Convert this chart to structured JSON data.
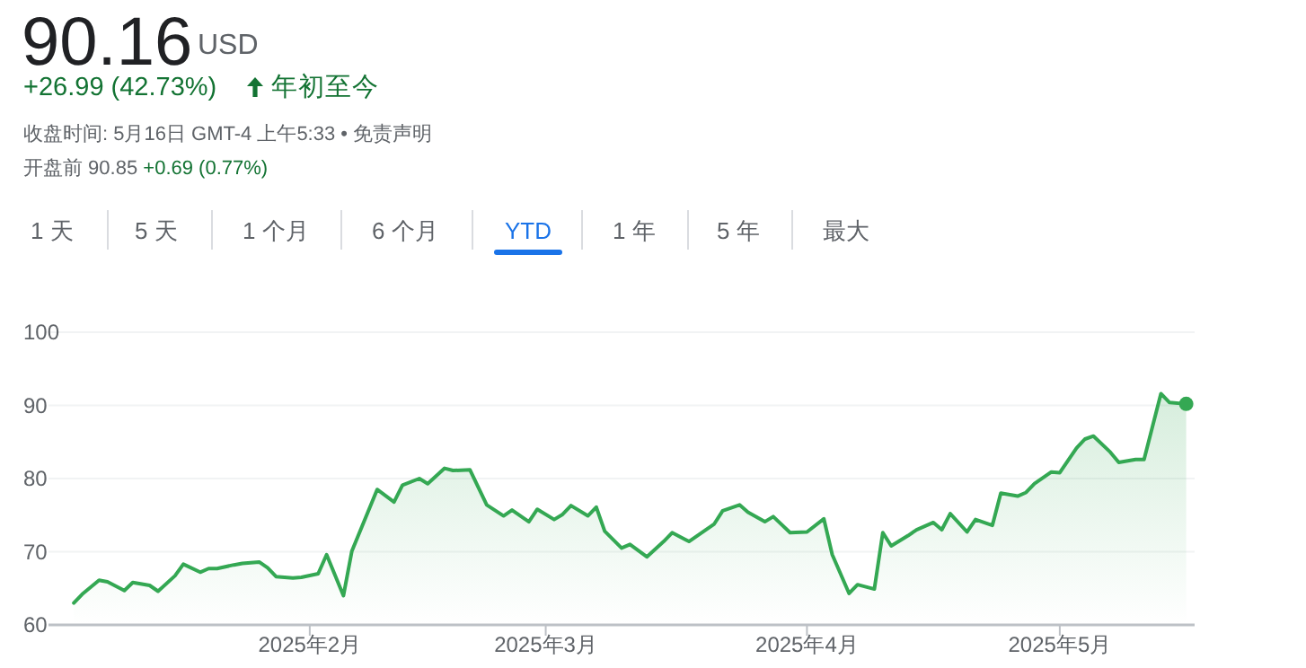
{
  "chart_data": {
    "type": "area",
    "title": "90.16",
    "subtitle": "USD",
    "annotations": [
      "+26.99 (42.73%)",
      "年初至今",
      "收盘时间: 5月16日 GMT-4 上午5:33 • 免责声明",
      "开盘前 90.85",
      "+0.69 (0.77%)",
      "1 天",
      "5 天",
      "1 个月",
      "6 个月",
      "YTD",
      "1 年",
      "5 年",
      "最大"
    ],
    "x": [
      "2025-01-04",
      "2025-01-05",
      "2025-01-07",
      "2025-01-08",
      "2025-01-10",
      "2025-01-11",
      "2025-01-13",
      "2025-01-14",
      "2025-01-16",
      "2025-01-17",
      "2025-01-19",
      "2025-01-20",
      "2025-01-21",
      "2025-01-23",
      "2025-01-24",
      "2025-01-26",
      "2025-01-27",
      "2025-01-28",
      "2025-01-30",
      "2025-01-31",
      "2025-02-02",
      "2025-02-03",
      "2025-02-05",
      "2025-02-06",
      "2025-02-09",
      "2025-02-11",
      "2025-02-12",
      "2025-02-14",
      "2025-02-15",
      "2025-02-17",
      "2025-02-18",
      "2025-02-20",
      "2025-02-22",
      "2025-02-24",
      "2025-02-25",
      "2025-02-27",
      "2025-02-28",
      "2025-03-02",
      "2025-03-03",
      "2025-03-04",
      "2025-03-06",
      "2025-03-07",
      "2025-03-08",
      "2025-03-10",
      "2025-03-11",
      "2025-03-13",
      "2025-03-15",
      "2025-03-16",
      "2025-03-18",
      "2025-03-21",
      "2025-03-22",
      "2025-03-24",
      "2025-03-25",
      "2025-03-27",
      "2025-03-28",
      "2025-03-30",
      "2025-04-01",
      "2025-04-03",
      "2025-04-04",
      "2025-04-06",
      "2025-04-07",
      "2025-04-09",
      "2025-04-10",
      "2025-04-11",
      "2025-04-13",
      "2025-04-14",
      "2025-04-16",
      "2025-04-17",
      "2025-04-18",
      "2025-04-20",
      "2025-04-21",
      "2025-04-23",
      "2025-04-24",
      "2025-04-26",
      "2025-04-27",
      "2025-04-28",
      "2025-04-30",
      "2025-05-01",
      "2025-05-03",
      "2025-05-04",
      "2025-05-05",
      "2025-05-07",
      "2025-05-08",
      "2025-05-10",
      "2025-05-11",
      "2025-05-13",
      "2025-05-14",
      "2025-05-16"
    ],
    "series": [
      {
        "color": "#34a853",
        "values": [
          63.0,
          64.2,
          66.1,
          65.9,
          64.7,
          65.8,
          65.4,
          64.6,
          66.7,
          68.3,
          67.2,
          67.7,
          67.7,
          68.2,
          68.4,
          68.6,
          67.8,
          66.6,
          66.4,
          66.5,
          67.0,
          69.6,
          64.0,
          70.1,
          78.5,
          76.8,
          79.1,
          80.0,
          79.3,
          81.4,
          81.1,
          81.2,
          76.4,
          74.9,
          75.7,
          74.1,
          75.8,
          74.4,
          75.1,
          76.3,
          74.9,
          76.1,
          72.8,
          70.5,
          71.0,
          69.3,
          71.4,
          72.6,
          71.4,
          73.8,
          75.6,
          76.4,
          75.4,
          74.1,
          74.8,
          72.6,
          72.7,
          74.5,
          69.6,
          64.3,
          65.5,
          64.9,
          72.6,
          70.8,
          72.2,
          73.0,
          74.0,
          73.0,
          75.2,
          72.7,
          74.4,
          73.6,
          78.0,
          77.6,
          78.1,
          79.3,
          80.9,
          80.8,
          84.2,
          85.4,
          85.8,
          83.6,
          82.2,
          82.6,
          82.6,
          91.6,
          90.4,
          90.2
        ]
      }
    ],
    "xlim": [
      "2025-01-01",
      "2025-05-17"
    ],
    "xticks": [
      {
        "value": "2025-02-01",
        "label": "2025年2月"
      },
      {
        "value": "2025-03-01",
        "label": "2025年3月"
      },
      {
        "value": "2025-04-01",
        "label": "2025年4月"
      },
      {
        "value": "2025-05-01",
        "label": "2025年5月"
      }
    ],
    "ylim": [
      60,
      100
    ],
    "yticks": [
      60,
      70,
      80,
      90,
      100
    ],
    "grid": "y"
  }
}
